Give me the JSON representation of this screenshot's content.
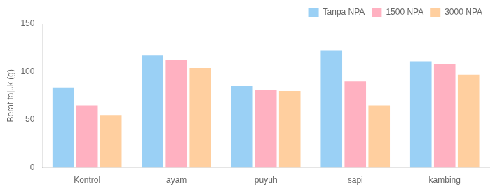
{
  "chart_data": {
    "type": "bar",
    "categories": [
      "Kontrol",
      "ayam",
      "puyuh",
      "sapi",
      "kambing"
    ],
    "series": [
      {
        "name": "Tanpa NPA",
        "values": [
          83,
          117,
          85,
          122,
          111
        ]
      },
      {
        "name": "1500 NPA",
        "values": [
          65,
          112,
          81,
          90,
          108
        ]
      },
      {
        "name": "3000 NPA",
        "values": [
          55,
          104,
          80,
          65,
          97
        ]
      }
    ],
    "ylabel": "Berat tajuk (g)",
    "ylim": [
      0,
      150
    ],
    "yticks": [
      0,
      50,
      100,
      150
    ],
    "grid": false,
    "legend": "upper right"
  }
}
